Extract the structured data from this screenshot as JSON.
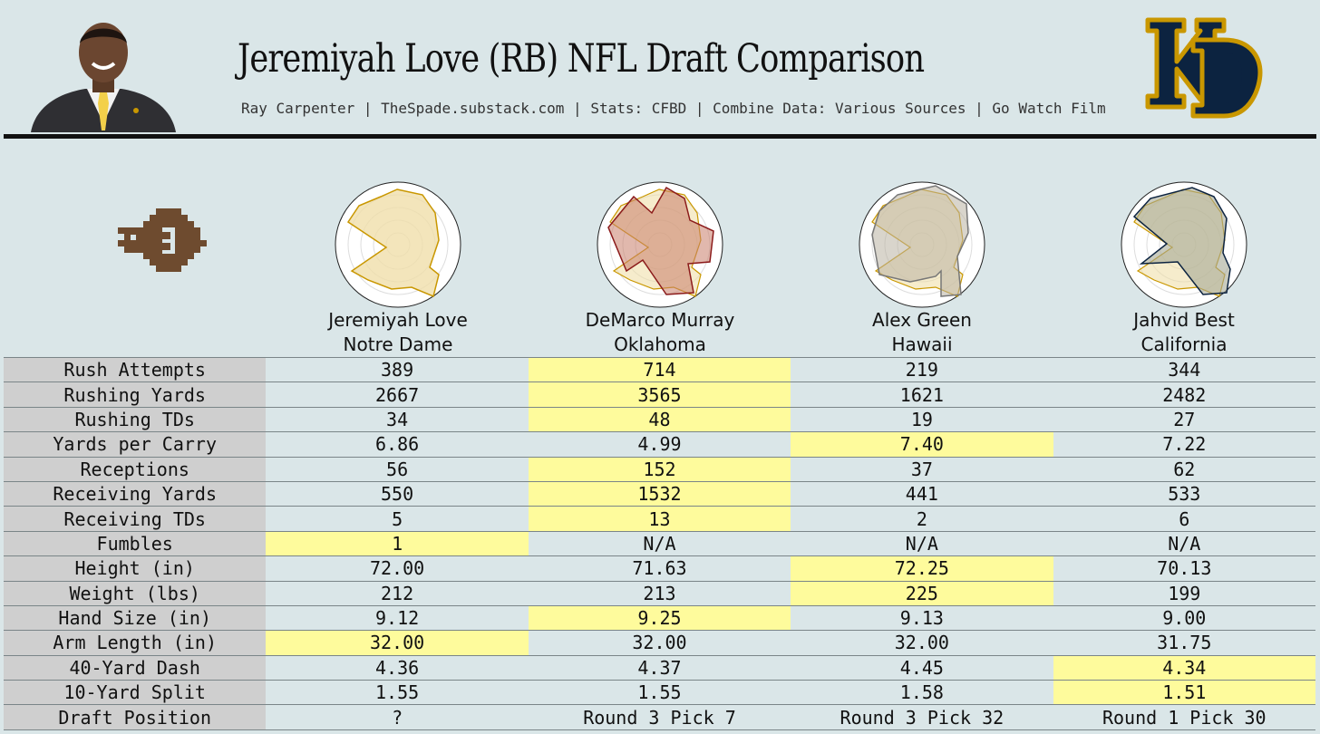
{
  "header": {
    "title": "Jeremiyah Love (RB) NFL Draft Comparison",
    "subtitle": "Ray Carpenter | TheSpade.substack.com | Stats: CFBD | Combine Data: Various Sources | Go Watch Film"
  },
  "colors": {
    "background": "#dae6e8",
    "highlight": "#fefb9c",
    "label_bg": "#cfcfcf",
    "nd_navy": "#0c2340",
    "nd_gold": "#c99700"
  },
  "players": [
    {
      "name": "Jeremiyah Love",
      "school": "Notre Dame"
    },
    {
      "name": "DeMarco Murray",
      "school": "Oklahoma"
    },
    {
      "name": "Alex Green",
      "school": "Hawaii"
    },
    {
      "name": "Jahvid Best",
      "school": "California"
    }
  ],
  "rows": [
    {
      "label": "Rush Attempts",
      "values": [
        "389",
        "714",
        "219",
        "344"
      ],
      "best": 1
    },
    {
      "label": "Rushing Yards",
      "values": [
        "2667",
        "3565",
        "1621",
        "2482"
      ],
      "best": 1
    },
    {
      "label": "Rushing TDs",
      "values": [
        "34",
        "48",
        "19",
        "27"
      ],
      "best": 1
    },
    {
      "label": "Yards per Carry",
      "values": [
        "6.86",
        "4.99",
        "7.40",
        "7.22"
      ],
      "best": 2
    },
    {
      "label": "Receptions",
      "values": [
        "56",
        "152",
        "37",
        "62"
      ],
      "best": 1
    },
    {
      "label": "Receiving Yards",
      "values": [
        "550",
        "1532",
        "441",
        "533"
      ],
      "best": 1
    },
    {
      "label": "Receiving TDs",
      "values": [
        "5",
        "13",
        "2",
        "6"
      ],
      "best": 1
    },
    {
      "label": "Fumbles",
      "values": [
        "1",
        "N/A",
        "N/A",
        "N/A"
      ],
      "best": 0
    },
    {
      "label": "Height (in)",
      "values": [
        "72.00",
        "71.63",
        "72.25",
        "70.13"
      ],
      "best": 2
    },
    {
      "label": "Weight (lbs)",
      "values": [
        "212",
        "213",
        "225",
        "199"
      ],
      "best": 2
    },
    {
      "label": "Hand Size (in)",
      "values": [
        "9.12",
        "9.25",
        "9.13",
        "9.00"
      ],
      "best": 1
    },
    {
      "label": "Arm Length (in)",
      "values": [
        "32.00",
        "32.00",
        "32.00",
        "31.75"
      ],
      "best": 0
    },
    {
      "label": "40-Yard Dash",
      "values": [
        "4.36",
        "4.37",
        "4.45",
        "4.34"
      ],
      "best": 3
    },
    {
      "label": "10-Yard Split",
      "values": [
        "1.55",
        "1.55",
        "1.58",
        "1.51"
      ],
      "best": 3
    },
    {
      "label": "Draft Position",
      "values": [
        "?",
        "Round 3 Pick 7",
        "Round 3 Pick 32",
        "Round 1 Pick 30"
      ],
      "best": -1
    }
  ]
}
